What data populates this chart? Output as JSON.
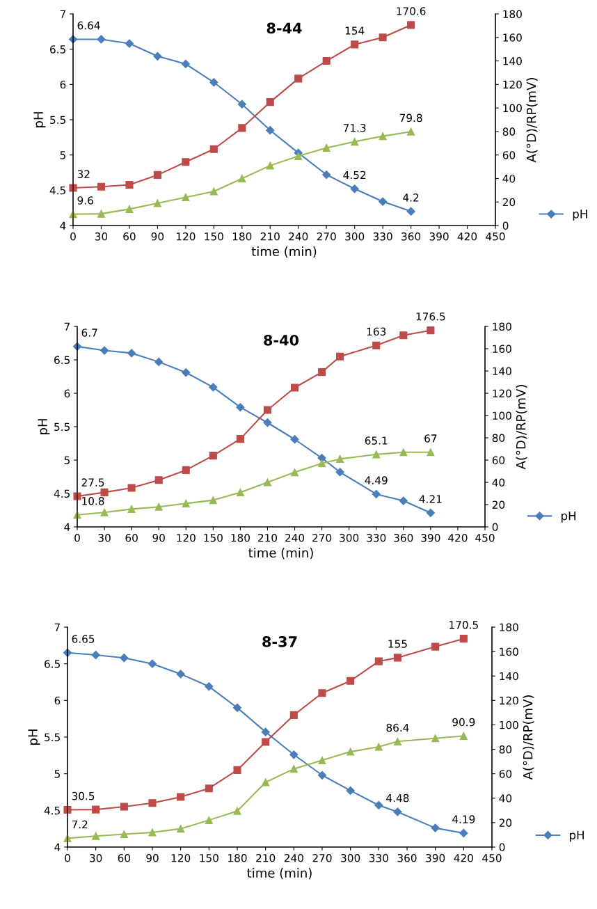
{
  "chart_data": [
    {
      "type": "line",
      "title": "8-44",
      "xlabel": "time (min)",
      "ylabel": "pH",
      "y2label": "A(°D)/RP(mV)",
      "xlim": [
        0,
        450
      ],
      "xticks": [
        0,
        30,
        60,
        90,
        120,
        150,
        180,
        210,
        240,
        270,
        300,
        330,
        360,
        390,
        420,
        450
      ],
      "ylim": [
        4,
        7
      ],
      "yticks": [
        4,
        4.5,
        5,
        5.5,
        6,
        6.5,
        7
      ],
      "y2lim": [
        0,
        180
      ],
      "y2ticks": [
        0,
        20,
        40,
        60,
        80,
        100,
        120,
        140,
        160,
        180
      ],
      "grid": false,
      "legend": "right",
      "series": [
        {
          "name": "pH",
          "color": "#4a7ebb",
          "marker": "diamond",
          "x": [
            0,
            30,
            60,
            90,
            120,
            150,
            180,
            210,
            240,
            270,
            300,
            330,
            360
          ],
          "values": [
            6.64,
            6.64,
            6.58,
            6.4,
            6.29,
            6.03,
            5.72,
            5.35,
            5.03,
            4.72,
            4.52,
            4.34,
            4.2
          ],
          "value_labels": [
            "6.64",
            null,
            null,
            null,
            null,
            null,
            null,
            null,
            null,
            null,
            "4.52",
            null,
            "4.2"
          ]
        },
        {
          "color": "#be4b48",
          "marker": "square",
          "axis": "y2",
          "x": [
            0,
            30,
            60,
            90,
            120,
            150,
            180,
            210,
            240,
            270,
            300,
            330,
            360
          ],
          "values": [
            32,
            33,
            34.6,
            43,
            54,
            65,
            83,
            105,
            125,
            140,
            154,
            160,
            170.6
          ],
          "value_labels": [
            "32",
            null,
            null,
            null,
            null,
            null,
            null,
            null,
            null,
            null,
            "154",
            null,
            "170.6"
          ]
        },
        {
          "color": "#98b954",
          "marker": "triangle",
          "axis": "y2",
          "x": [
            0,
            30,
            60,
            90,
            120,
            150,
            180,
            210,
            240,
            270,
            300,
            330,
            360
          ],
          "values": [
            9.6,
            10,
            14,
            19,
            24,
            29,
            40,
            51,
            59,
            66,
            71.3,
            76,
            79.8
          ],
          "value_labels": [
            "9.6",
            null,
            null,
            null,
            null,
            null,
            null,
            null,
            null,
            null,
            "71.3",
            null,
            "79.8"
          ]
        }
      ]
    },
    {
      "type": "line",
      "title": "8-40",
      "xlabel": "time (min)",
      "ylabel": "pH",
      "y2label": "A(°D)/RP(mV)",
      "xlim": [
        0,
        450
      ],
      "xticks": [
        0,
        30,
        60,
        90,
        120,
        150,
        180,
        210,
        240,
        270,
        300,
        330,
        360,
        390,
        420,
        450
      ],
      "ylim": [
        4,
        7
      ],
      "yticks": [
        4,
        4.5,
        5,
        5.5,
        6,
        6.5,
        7
      ],
      "y2lim": [
        0,
        180
      ],
      "y2ticks": [
        0,
        20,
        40,
        60,
        80,
        100,
        120,
        140,
        160,
        180
      ],
      "grid": false,
      "legend": "right",
      "series": [
        {
          "name": "pH",
          "color": "#4a7ebb",
          "marker": "diamond",
          "x": [
            0,
            30,
            60,
            90,
            120,
            150,
            180,
            210,
            240,
            270,
            290,
            330,
            360,
            390
          ],
          "values": [
            6.7,
            6.64,
            6.6,
            6.47,
            6.31,
            6.09,
            5.79,
            5.56,
            5.31,
            5.03,
            4.82,
            4.49,
            4.39,
            4.21
          ],
          "value_labels": [
            "6.7",
            null,
            null,
            null,
            null,
            null,
            null,
            null,
            null,
            null,
            null,
            "4.49",
            null,
            "4.21"
          ]
        },
        {
          "color": "#be4b48",
          "marker": "square",
          "axis": "y2",
          "x": [
            0,
            30,
            60,
            90,
            120,
            150,
            180,
            210,
            240,
            270,
            290,
            330,
            360,
            390
          ],
          "values": [
            27.5,
            31,
            35,
            42,
            51,
            64,
            79,
            105,
            125,
            139,
            153,
            163,
            172,
            176.5
          ],
          "value_labels": [
            "27.5",
            null,
            null,
            null,
            null,
            null,
            null,
            null,
            null,
            null,
            null,
            "163",
            null,
            "176.5"
          ]
        },
        {
          "color": "#98b954",
          "marker": "triangle",
          "axis": "y2",
          "x": [
            0,
            30,
            60,
            90,
            120,
            150,
            180,
            210,
            240,
            270,
            290,
            330,
            360,
            390
          ],
          "values": [
            10.8,
            13,
            16,
            18,
            21,
            24,
            31,
            40,
            49,
            57,
            61,
            65.1,
            67,
            67
          ],
          "value_labels": [
            "10.8",
            null,
            null,
            null,
            null,
            null,
            null,
            null,
            null,
            null,
            null,
            "65.1",
            null,
            "67"
          ]
        }
      ]
    },
    {
      "type": "line",
      "title": "8-37",
      "xlabel": "time (min)",
      "ylabel": "pH",
      "y2label": "A(°D)/RP(mV)",
      "xlim": [
        0,
        450
      ],
      "xticks": [
        0,
        30,
        60,
        90,
        120,
        150,
        180,
        210,
        240,
        270,
        300,
        330,
        360,
        390,
        420,
        450
      ],
      "ylim": [
        4,
        7
      ],
      "yticks": [
        4,
        4.5,
        5,
        5.5,
        6,
        6.5,
        7
      ],
      "y2lim": [
        0,
        180
      ],
      "y2ticks": [
        0,
        20,
        40,
        60,
        80,
        100,
        120,
        140,
        160,
        180
      ],
      "grid": false,
      "legend": "right",
      "series": [
        {
          "name": "pH",
          "color": "#4a7ebb",
          "marker": "diamond",
          "x": [
            0,
            30,
            60,
            90,
            120,
            150,
            180,
            210,
            240,
            270,
            300,
            330,
            350,
            390,
            420
          ],
          "values": [
            6.65,
            6.62,
            6.58,
            6.5,
            6.36,
            6.19,
            5.9,
            5.57,
            5.26,
            4.98,
            4.77,
            4.57,
            4.48,
            4.26,
            4.19
          ],
          "value_labels": [
            "6.65",
            null,
            null,
            null,
            null,
            null,
            null,
            null,
            null,
            null,
            null,
            null,
            "4.48",
            null,
            "4.19"
          ]
        },
        {
          "color": "#be4b48",
          "marker": "square",
          "axis": "y2",
          "x": [
            0,
            30,
            60,
            90,
            120,
            150,
            180,
            210,
            240,
            270,
            300,
            330,
            350,
            390,
            420
          ],
          "values": [
            30.5,
            30.7,
            33,
            36,
            41,
            48,
            63,
            86,
            108,
            126,
            136,
            152,
            155,
            164,
            170.5
          ],
          "value_labels": [
            "30.5",
            null,
            null,
            null,
            null,
            null,
            null,
            null,
            null,
            null,
            null,
            null,
            "155",
            null,
            "170.5"
          ]
        },
        {
          "color": "#98b954",
          "marker": "triangle",
          "axis": "y2",
          "x": [
            0,
            30,
            60,
            90,
            120,
            150,
            180,
            210,
            240,
            270,
            300,
            330,
            350,
            390,
            420
          ],
          "values": [
            7.2,
            9,
            10.5,
            12,
            15,
            22,
            29.5,
            53,
            64,
            71,
            78,
            82,
            86.4,
            89,
            90.9
          ],
          "value_labels": [
            "7.2",
            null,
            null,
            null,
            null,
            null,
            null,
            null,
            null,
            null,
            null,
            null,
            "86.4",
            null,
            "90.9"
          ]
        }
      ]
    }
  ]
}
